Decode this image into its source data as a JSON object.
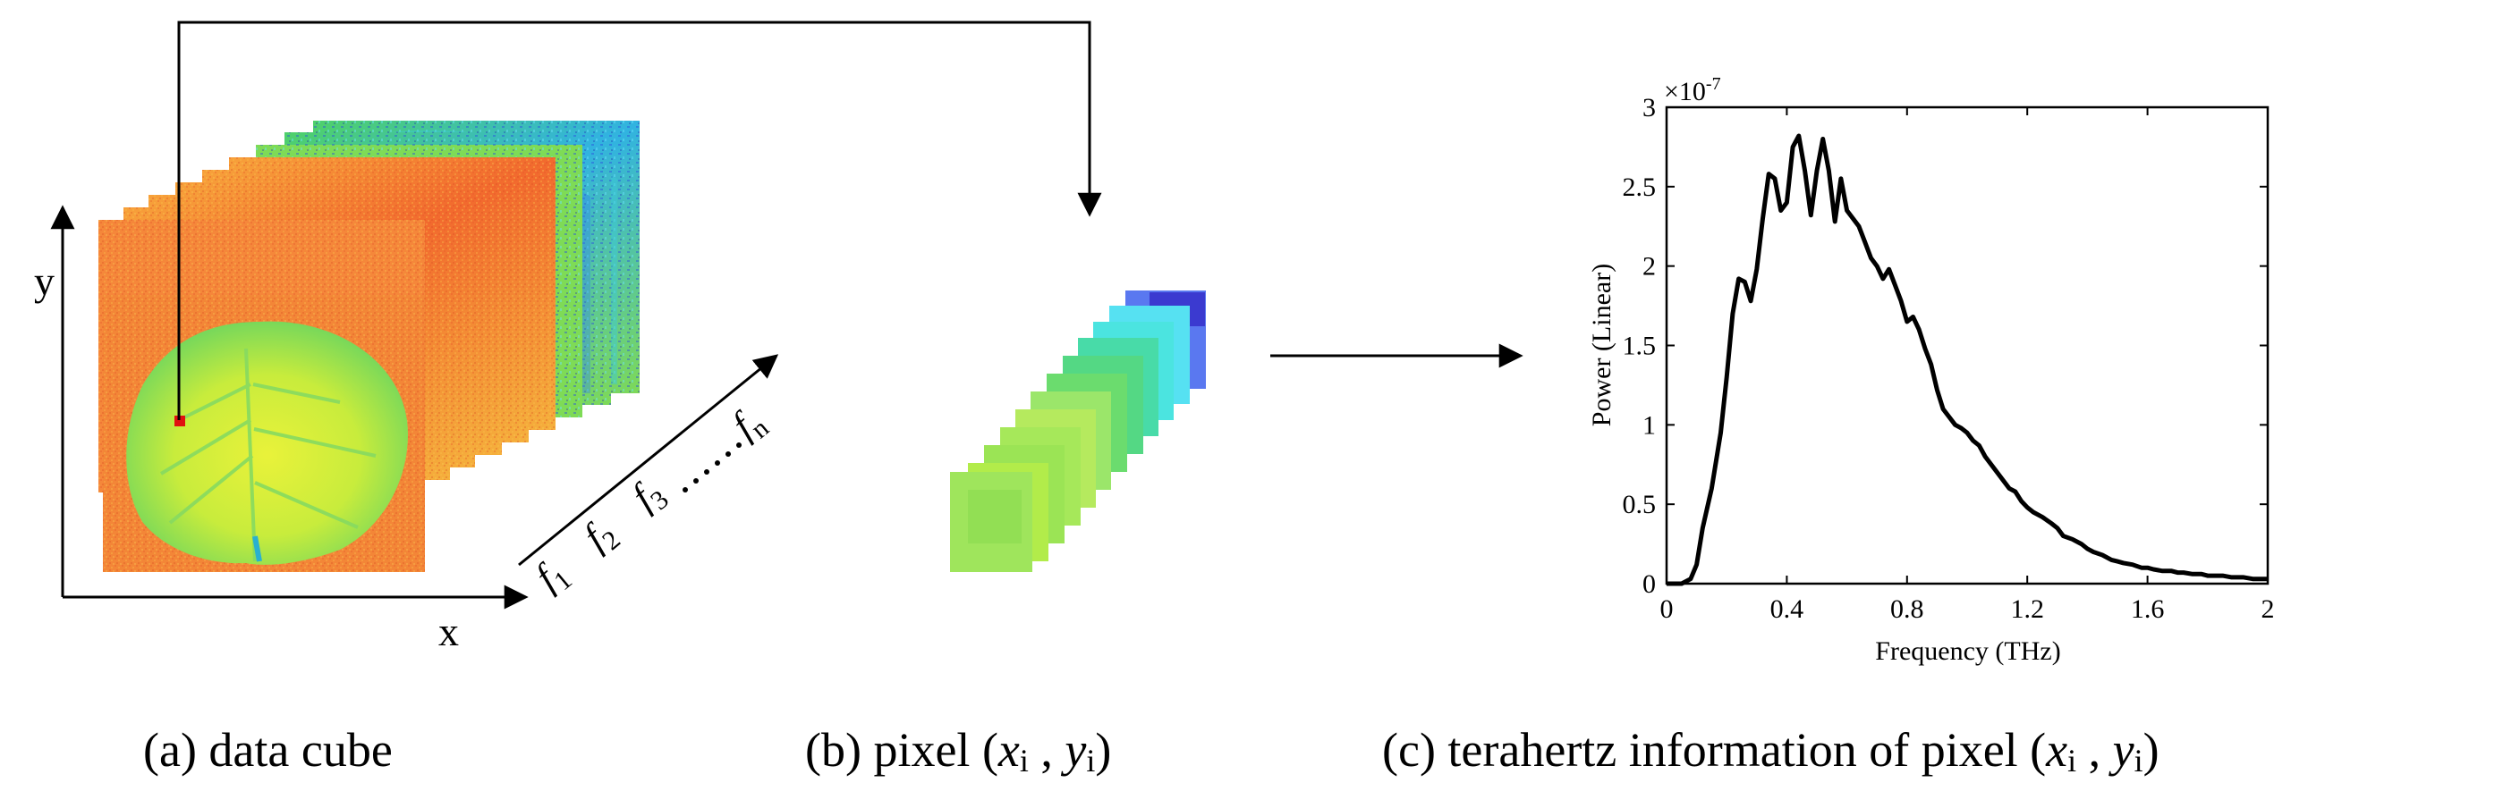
{
  "panel_a": {
    "axis_y_label": "y",
    "axis_x_label": "x",
    "freq_labels": {
      "f1": "f",
      "f1_sub": "1",
      "f2": "f",
      "f2_sub": "2",
      "f3": "f",
      "f3_sub": "3",
      "fn": "f",
      "fn_sub": "n"
    },
    "caption": "(a)  data cube"
  },
  "panel_b": {
    "caption_prefix": "(b)  pixel (",
    "caption_x": "x",
    "caption_x_sub": "i",
    "caption_sep": " , ",
    "caption_y": "y",
    "caption_y_sub": "i",
    "caption_suffix": ")"
  },
  "panel_c": {
    "caption_prefix": "(c)  terahertz information of pixel (",
    "caption_x": "x",
    "caption_x_sub": "i",
    "caption_sep": " , ",
    "caption_y": "y",
    "caption_y_sub": "i",
    "caption_suffix": ")"
  },
  "chart_data": {
    "type": "line",
    "title": "",
    "xlabel": "Frequency (THz)",
    "ylabel": "Power (Linear)",
    "exponent_label": "×10",
    "exponent_power": "-7",
    "xlim": [
      0,
      2
    ],
    "ylim": [
      0,
      3
    ],
    "xticks": [
      0,
      0.4,
      0.8,
      1.2,
      1.6,
      2
    ],
    "xtick_labels": [
      "0",
      "0.4",
      "0.8",
      "1.2",
      "1.6",
      "2"
    ],
    "yticks": [
      0,
      0.5,
      1,
      1.5,
      2,
      2.5,
      3
    ],
    "ytick_labels": [
      "0",
      "0.5",
      "1",
      "1.5",
      "2",
      "2.5",
      "3"
    ],
    "grid": false,
    "series": [
      {
        "color": "#000000",
        "x": [
          0,
          0.05,
          0.08,
          0.1,
          0.12,
          0.15,
          0.18,
          0.2,
          0.22,
          0.24,
          0.26,
          0.28,
          0.3,
          0.32,
          0.34,
          0.36,
          0.38,
          0.4,
          0.42,
          0.44,
          0.46,
          0.48,
          0.5,
          0.52,
          0.54,
          0.56,
          0.58,
          0.6,
          0.62,
          0.64,
          0.66,
          0.68,
          0.7,
          0.72,
          0.74,
          0.76,
          0.78,
          0.8,
          0.82,
          0.84,
          0.86,
          0.88,
          0.9,
          0.92,
          0.94,
          0.96,
          0.98,
          1.0,
          1.02,
          1.04,
          1.06,
          1.08,
          1.1,
          1.12,
          1.14,
          1.16,
          1.18,
          1.2,
          1.22,
          1.25,
          1.28,
          1.3,
          1.32,
          1.35,
          1.38,
          1.4,
          1.42,
          1.45,
          1.48,
          1.5,
          1.52,
          1.55,
          1.58,
          1.6,
          1.62,
          1.65,
          1.68,
          1.7,
          1.72,
          1.75,
          1.78,
          1.8,
          1.82,
          1.85,
          1.88,
          1.9,
          1.92,
          1.95,
          1.98,
          2.0
        ],
        "y": [
          0,
          0.0,
          0.03,
          0.12,
          0.35,
          0.6,
          0.95,
          1.3,
          1.7,
          1.92,
          1.9,
          1.78,
          1.98,
          2.3,
          2.58,
          2.55,
          2.35,
          2.4,
          2.75,
          2.82,
          2.6,
          2.32,
          2.6,
          2.8,
          2.6,
          2.28,
          2.55,
          2.35,
          2.3,
          2.25,
          2.15,
          2.05,
          2.0,
          1.92,
          1.98,
          1.88,
          1.78,
          1.65,
          1.68,
          1.6,
          1.48,
          1.38,
          1.22,
          1.1,
          1.05,
          1.0,
          0.98,
          0.95,
          0.9,
          0.87,
          0.8,
          0.75,
          0.7,
          0.65,
          0.6,
          0.58,
          0.52,
          0.48,
          0.45,
          0.42,
          0.38,
          0.35,
          0.3,
          0.28,
          0.25,
          0.22,
          0.2,
          0.18,
          0.15,
          0.14,
          0.13,
          0.12,
          0.1,
          0.1,
          0.09,
          0.08,
          0.08,
          0.07,
          0.07,
          0.06,
          0.06,
          0.05,
          0.05,
          0.05,
          0.04,
          0.04,
          0.04,
          0.03,
          0.03,
          0.03
        ]
      }
    ]
  }
}
